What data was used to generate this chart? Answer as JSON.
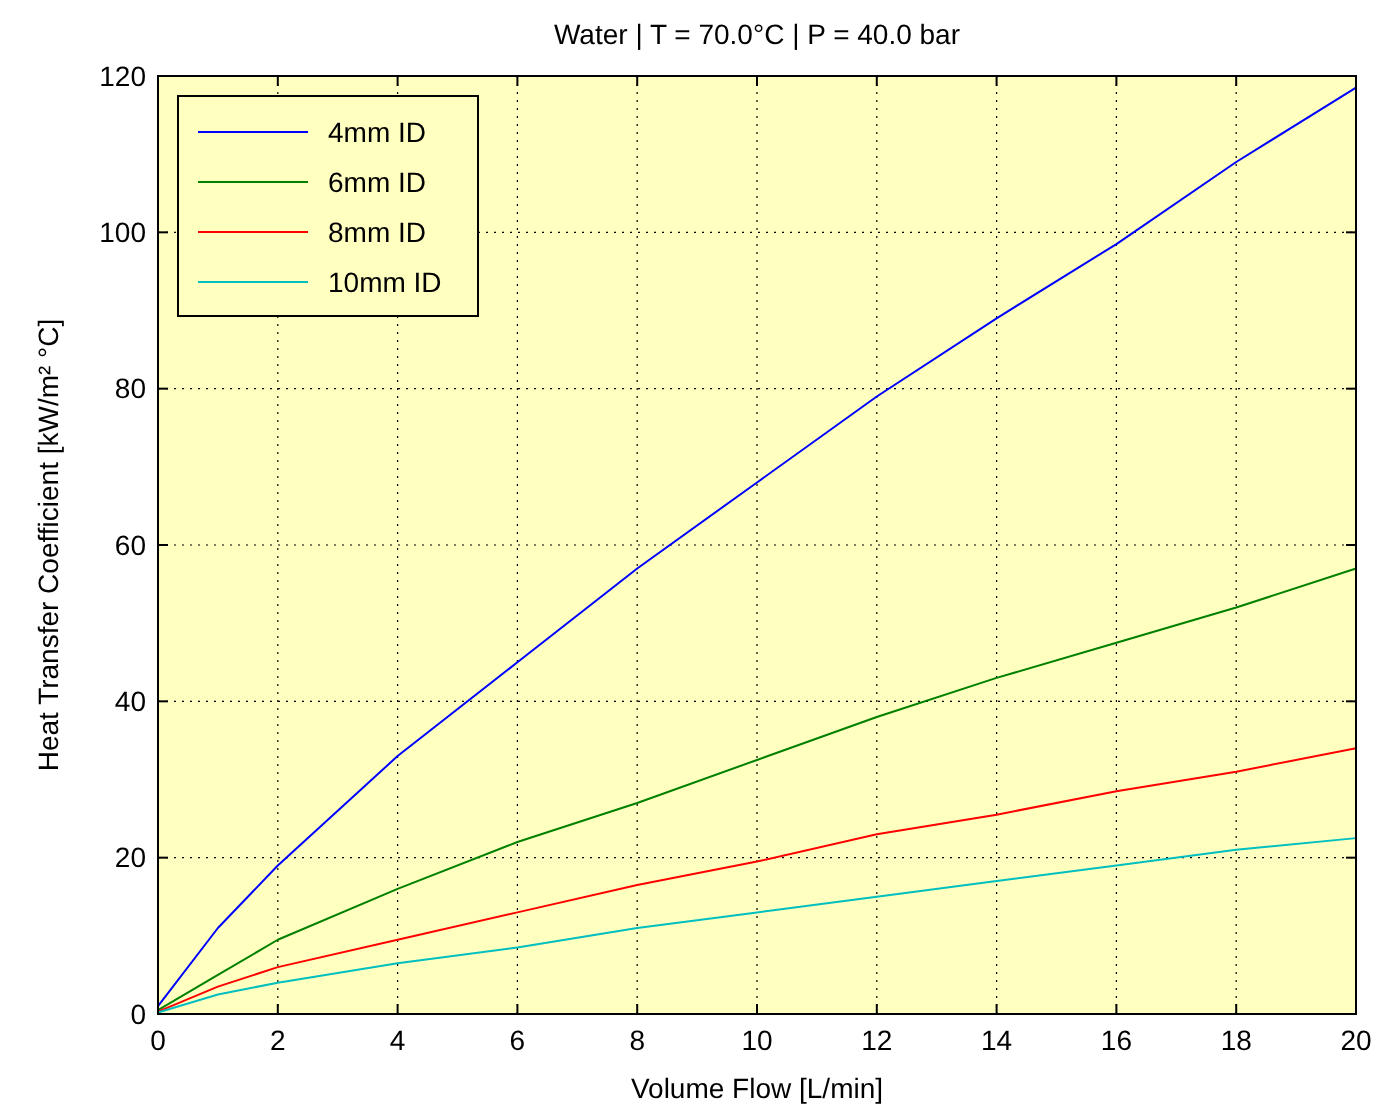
{
  "chart_data": {
    "type": "line",
    "title": "Water | T = 70.0°C | P = 40.0 bar",
    "xlabel": "Volume Flow [L/min]",
    "ylabel": "Heat Transfer Coefficient [kW/m² °C]",
    "x": [
      0,
      1,
      2,
      4,
      6,
      8,
      10,
      12,
      14,
      16,
      18,
      20
    ],
    "series": [
      {
        "name": "4mm ID",
        "color": "#0000ff",
        "values": [
          1,
          11,
          19,
          33,
          45,
          57,
          68,
          79,
          89,
          98.5,
          109,
          118.5
        ]
      },
      {
        "name": "6mm ID",
        "color": "#008000",
        "values": [
          0.5,
          5,
          9.5,
          16,
          22,
          27,
          32.5,
          38,
          43,
          47.5,
          52,
          57
        ]
      },
      {
        "name": "8mm ID",
        "color": "#ff0000",
        "values": [
          0.3,
          3.5,
          6,
          9.5,
          13,
          16.5,
          19.5,
          23,
          25.5,
          28.5,
          31,
          34
        ]
      },
      {
        "name": "10mm ID",
        "color": "#00bfbf",
        "values": [
          0.2,
          2.5,
          4,
          6.5,
          8.5,
          11,
          13,
          15,
          17,
          19,
          21,
          22.5
        ]
      }
    ],
    "xlim": [
      0,
      20
    ],
    "xticks": [
      0,
      2,
      4,
      6,
      8,
      10,
      12,
      14,
      16,
      18,
      20
    ],
    "ylim": [
      0,
      120
    ],
    "yticks": [
      0,
      20,
      40,
      60,
      80,
      100,
      120
    ],
    "grid": true,
    "legend": "top left",
    "line_style": "solid",
    "marker": "none"
  }
}
